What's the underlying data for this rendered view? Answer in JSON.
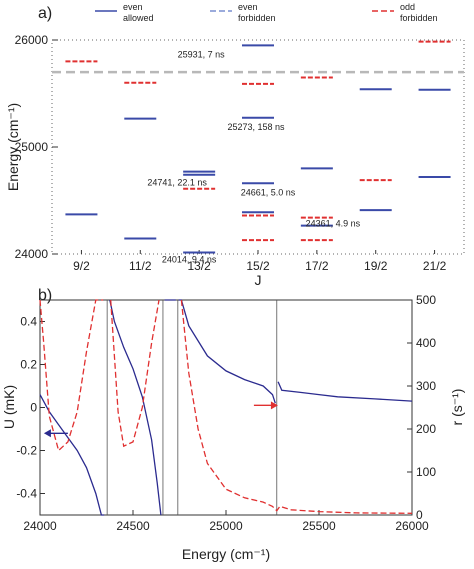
{
  "chart_data": [
    {
      "type": "scatter",
      "panel_label": "a)",
      "ylabel": "Energy (cm⁻¹)",
      "xlabel": "J",
      "categories": [
        "9/2",
        "11/2",
        "13/2",
        "15/2",
        "17/2",
        "19/2",
        "21/2"
      ],
      "ylim": [
        24000,
        26000
      ],
      "yticks": [
        24000,
        25000,
        26000
      ],
      "reference_energy": 25700,
      "legend": [
        {
          "line1": "even",
          "line2": "allowed",
          "color": "#3a4aa8",
          "dash": "solid"
        },
        {
          "line1": "even",
          "line2": "forbidden",
          "color": "#7a8fd0",
          "dash": "dashed"
        },
        {
          "line1": "odd",
          "line2": "forbidden",
          "color": "#e03030",
          "dash": "dashed"
        }
      ],
      "series": [
        {
          "name": "even allowed",
          "color": "#3a4aa8",
          "points": [
            {
              "j": "9/2",
              "e": 24370
            },
            {
              "j": "11/2",
              "e": 24145
            },
            {
              "j": "11/2",
              "e": 25265
            },
            {
              "j": "13/2",
              "e": 24014
            },
            {
              "j": "13/2",
              "e": 24741
            },
            {
              "j": "13/2",
              "e": 24770
            },
            {
              "j": "15/2",
              "e": 24661
            },
            {
              "j": "15/2",
              "e": 25273
            },
            {
              "j": "15/2",
              "e": 25950
            },
            {
              "j": "15/2",
              "e": 24390
            },
            {
              "j": "17/2",
              "e": 24265
            },
            {
              "j": "17/2",
              "e": 24800
            },
            {
              "j": "19/2",
              "e": 24410
            },
            {
              "j": "19/2",
              "e": 25540
            },
            {
              "j": "21/2",
              "e": 24720
            },
            {
              "j": "21/2",
              "e": 25535
            }
          ]
        },
        {
          "name": "odd forbidden",
          "color": "#e03030",
          "points": [
            {
              "j": "9/2",
              "e": 25800
            },
            {
              "j": "11/2",
              "e": 25600
            },
            {
              "j": "13/2",
              "e": 24610
            },
            {
              "j": "15/2",
              "e": 24130
            },
            {
              "j": "15/2",
              "e": 24360
            },
            {
              "j": "15/2",
              "e": 25590
            },
            {
              "j": "17/2",
              "e": 24130
            },
            {
              "j": "17/2",
              "e": 24340
            },
            {
              "j": "17/2",
              "e": 25650
            },
            {
              "j": "19/2",
              "e": 24690
            },
            {
              "j": "21/2",
              "e": 25985
            }
          ]
        }
      ],
      "annotations": [
        {
          "text": "25931, 7 ns",
          "j": "13/2",
          "e": 25931
        },
        {
          "text": "25273, 158 ns",
          "j": "15/2",
          "e": 25273
        },
        {
          "text": "24741, 22.1 ns",
          "j": "13/2",
          "e": 24741
        },
        {
          "text": "24661, 5.0 ns",
          "j": "15/2",
          "e": 24661
        },
        {
          "text": "24361, 4.9 ns",
          "j": "17/2",
          "e": 24361
        },
        {
          "text": "24014, 9.4 ns",
          "j": "13/2",
          "e": 24014
        }
      ]
    },
    {
      "type": "line",
      "panel_label": "b)",
      "xlabel": "Energy (cm⁻¹)",
      "ylabel": "U (mK)",
      "y2label": "r (s⁻¹)",
      "xlim": [
        24000,
        26000
      ],
      "ylim": [
        -0.5,
        0.5
      ],
      "y2lim": [
        0,
        500
      ],
      "xticks": [
        24000,
        24500,
        25000,
        25500,
        26000
      ],
      "yticks": [
        -0.4,
        -0.2,
        0,
        0.2,
        0.4
      ],
      "y2ticks": [
        0,
        100,
        200,
        300,
        400,
        500
      ],
      "resonances": [
        24361,
        24661,
        24741,
        25273
      ],
      "series": [
        {
          "name": "U",
          "axis": "left",
          "color": "#2b2b8f",
          "x": [
            24000,
            24050,
            24100,
            24150,
            24200,
            24250,
            24300,
            24330,
            24345,
            24361,
            24375,
            24400,
            24450,
            24500,
            24550,
            24600,
            24630,
            24650,
            24661,
            24670,
            24690,
            24710,
            24730,
            24741,
            24745,
            24760,
            24800,
            24900,
            25000,
            25100,
            25200,
            25250,
            25265,
            25273,
            25280,
            25300,
            25400,
            25500,
            25600,
            25800,
            26000
          ],
          "y": [
            0.06,
            -0.02,
            -0.08,
            -0.14,
            -0.2,
            -0.28,
            -0.4,
            -0.5,
            -0.5,
            null,
            0.5,
            0.4,
            0.28,
            0.18,
            0.05,
            -0.15,
            -0.35,
            -0.5,
            null,
            0.5,
            0.5,
            0.5,
            0.5,
            null,
            0.5,
            0.5,
            0.38,
            0.24,
            0.17,
            0.13,
            0.1,
            0.06,
            0.02,
            null,
            0.12,
            0.08,
            0.07,
            0.06,
            0.05,
            0.04,
            0.03
          ]
        },
        {
          "name": "r",
          "axis": "right",
          "color": "#e03030",
          "x": [
            24000,
            24020,
            24050,
            24100,
            24150,
            24200,
            24250,
            24300,
            24340,
            24361,
            24380,
            24420,
            24450,
            24500,
            24550,
            24600,
            24640,
            24661,
            24680,
            24741,
            24760,
            24800,
            24850,
            24900,
            25000,
            25100,
            25200,
            25250,
            25273,
            25290,
            25350,
            25500,
            25700,
            26000
          ],
          "y": [
            500,
            400,
            230,
            150,
            170,
            240,
            380,
            500,
            500,
            null,
            500,
            240,
            160,
            170,
            250,
            400,
            500,
            null,
            500,
            null,
            500,
            330,
            200,
            120,
            60,
            40,
            30,
            20,
            10,
            20,
            12,
            8,
            5,
            4
          ]
        }
      ],
      "arrows": [
        {
          "series": "U",
          "direction": "left",
          "x": 24150,
          "y": -0.12
        },
        {
          "series": "r",
          "direction": "right",
          "x": 25150,
          "y": 0.01
        }
      ]
    }
  ]
}
